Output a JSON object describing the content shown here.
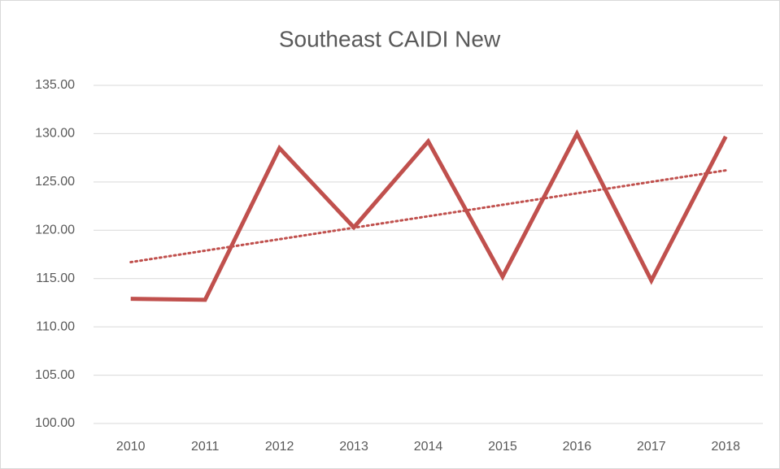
{
  "chart_data": {
    "type": "line",
    "title": "Southeast CAIDI New",
    "categories": [
      "2010",
      "2011",
      "2012",
      "2013",
      "2014",
      "2015",
      "2016",
      "2017",
      "2018"
    ],
    "series": [
      {
        "color": "#c0504d",
        "values": [
          112.9,
          112.8,
          128.5,
          120.3,
          129.2,
          115.2,
          130.0,
          114.8,
          129.7
        ]
      }
    ],
    "trendline": {
      "color": "#c0504d",
      "style": "dotted",
      "values": [
        116.7,
        126.2
      ]
    },
    "ylim": [
      100,
      135
    ],
    "yticks": [
      {
        "value": 100,
        "label": "100.00"
      },
      {
        "value": 105,
        "label": "105.00"
      },
      {
        "value": 110,
        "label": "110.00"
      },
      {
        "value": 115,
        "label": "115.00"
      },
      {
        "value": 120,
        "label": "120.00"
      },
      {
        "value": 125,
        "label": "125.00"
      },
      {
        "value": 130,
        "label": "130.00"
      },
      {
        "value": 135,
        "label": "135.00"
      }
    ],
    "grid": true
  }
}
